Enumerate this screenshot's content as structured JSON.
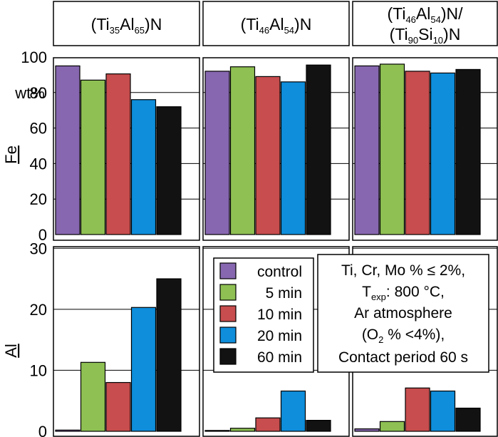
{
  "colors": {
    "control": "#8767b0",
    "5 min": "#8ec053",
    "10 min": "#c74d4e",
    "20 min": "#0e8edb",
    "60 min": "#121212"
  },
  "chart_data": {
    "type": "bar",
    "series_names": [
      "control",
      "5 min",
      "10 min",
      "20 min",
      "60 min"
    ],
    "column_titles": [
      {
        "line1_parts": [
          [
            "(Ti",
            ""
          ],
          [
            "35",
            "sub"
          ],
          [
            "Al",
            ""
          ],
          [
            "65",
            "sub"
          ],
          [
            ")N",
            ""
          ]
        ]
      },
      {
        "line1_parts": [
          [
            "(Ti",
            ""
          ],
          [
            "46",
            "sub"
          ],
          [
            "Al",
            ""
          ],
          [
            "54",
            "sub"
          ],
          [
            ")N",
            ""
          ]
        ]
      },
      {
        "line1_parts": [
          [
            "(Ti",
            ""
          ],
          [
            "46",
            "sub"
          ],
          [
            "Al",
            ""
          ],
          [
            "54",
            "sub"
          ],
          [
            ")N/",
            ""
          ]
        ],
        "line2_parts": [
          [
            "(Ti",
            ""
          ],
          [
            "90",
            "sub"
          ],
          [
            "Si",
            ""
          ],
          [
            "10",
            "sub"
          ],
          [
            ")N",
            ""
          ]
        ]
      }
    ],
    "title_plain": [
      "(Ti35Al65)N",
      "(Ti46Al54)N",
      "(Ti46Al54)N/(Ti90Si10)N"
    ],
    "rows": [
      {
        "ylabel": "Fe",
        "unit": "wt%",
        "ylim": [
          0,
          100
        ],
        "yticks": [
          "0",
          "20",
          "40",
          "60",
          "80",
          "100"
        ],
        "values": [
          [
            95,
            87,
            90.5,
            76,
            72
          ],
          [
            92,
            94.5,
            89,
            86,
            95.5
          ],
          [
            95,
            96,
            92,
            91,
            93
          ]
        ]
      },
      {
        "ylabel": "Al",
        "ylim": [
          0,
          31
        ],
        "yticks": [
          "0",
          "10",
          "20",
          "30"
        ],
        "values": [
          [
            0.2,
            11.3,
            8,
            20.3,
            25
          ],
          [
            0.1,
            0.5,
            2.2,
            6.6,
            1.8
          ],
          [
            0.4,
            1.6,
            7.1,
            6.6,
            3.8
          ]
        ]
      }
    ],
    "legend": [
      "control",
      "5 min",
      "10 min",
      "20 min",
      "60 min"
    ],
    "annotation": {
      "line1": "Ti, Cr, Mo % ≤ 2%,",
      "line2_parts": [
        [
          "T",
          ""
        ],
        [
          "exp",
          "sub"
        ],
        [
          ": 800 °C,",
          ""
        ]
      ],
      "line3": "Ar atmosphere",
      "line4_parts": [
        [
          "(O",
          ""
        ],
        [
          "2",
          "sub"
        ],
        [
          " % <4%),",
          ""
        ]
      ],
      "line5": "Contact period 60 s"
    }
  }
}
